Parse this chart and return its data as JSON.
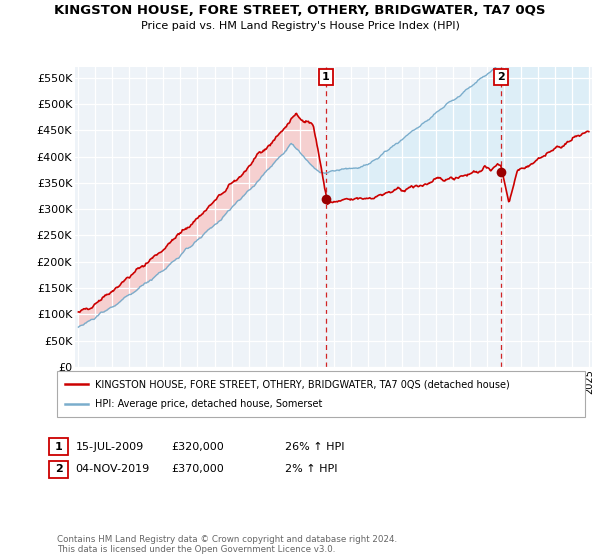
{
  "title": "KINGSTON HOUSE, FORE STREET, OTHERY, BRIDGWATER, TA7 0QS",
  "subtitle": "Price paid vs. HM Land Registry's House Price Index (HPI)",
  "ylabel_ticks": [
    "£0",
    "£50K",
    "£100K",
    "£150K",
    "£200K",
    "£250K",
    "£300K",
    "£350K",
    "£400K",
    "£450K",
    "£500K",
    "£550K"
  ],
  "ytick_values": [
    0,
    50000,
    100000,
    150000,
    200000,
    250000,
    300000,
    350000,
    400000,
    450000,
    500000,
    550000
  ],
  "ylim": [
    0,
    570000
  ],
  "xlim_start": 1994.8,
  "xlim_end": 2025.2,
  "legend_line1": "KINGSTON HOUSE, FORE STREET, OTHERY, BRIDGWATER, TA7 0QS (detached house)",
  "legend_line2": "HPI: Average price, detached house, Somerset",
  "annotation1_date": "15-JUL-2009",
  "annotation1_price": "£320,000",
  "annotation1_hpi": "26% ↑ HPI",
  "annotation2_date": "04-NOV-2019",
  "annotation2_price": "£370,000",
  "annotation2_hpi": "2% ↑ HPI",
  "vline1_x": 2009.54,
  "vline2_x": 2019.84,
  "sale1_x": 2009.54,
  "sale1_y": 320000,
  "sale2_x": 2019.84,
  "sale2_y": 370000,
  "footnote": "Contains HM Land Registry data © Crown copyright and database right 2024.\nThis data is licensed under the Open Government Licence v3.0.",
  "red_color": "#cc0000",
  "blue_color": "#7aadcc",
  "fill_blue": "#ddeef7",
  "fill_red": "#f5d0d0",
  "background_color": "#eef3f8",
  "grid_color": "#ffffff"
}
